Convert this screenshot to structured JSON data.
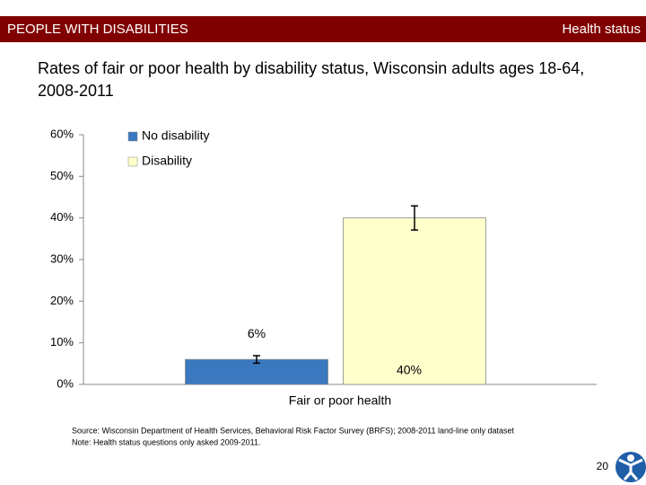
{
  "header": {
    "left": "PEOPLE WITH DISABILITIES",
    "right": "Health status"
  },
  "chart_data": {
    "type": "bar",
    "title": "Rates of fair or poor health by disability status, Wisconsin adults ages 18-64, 2008-2011",
    "categories": [
      "Fair or poor health"
    ],
    "series": [
      {
        "name": "No disability",
        "color": "#3a78c0",
        "values": [
          6
        ],
        "errors": [
          0.9
        ],
        "value_labels": [
          "6%"
        ]
      },
      {
        "name": "Disability",
        "color": "#ffffcc",
        "values": [
          40
        ],
        "errors": [
          2.9
        ],
        "value_labels": [
          "40%"
        ]
      }
    ],
    "ylim": [
      0,
      60
    ],
    "yticks": [
      {
        "value": 0,
        "label": "0%"
      },
      {
        "value": 10,
        "label": "10%"
      },
      {
        "value": 20,
        "label": "20%"
      },
      {
        "value": 30,
        "label": "30%"
      },
      {
        "value": 40,
        "label": "40%"
      },
      {
        "value": 50,
        "label": "50%"
      },
      {
        "value": 60,
        "label": "60%"
      }
    ],
    "grid": false,
    "legend": "top-left"
  },
  "footer": {
    "source": "Source: Wisconsin Department of Health Services, Behavioral Risk Factor Survey (BRFS); 2008-2011 land-line only dataset",
    "note": "Note: Health status questions only asked 2009-2011.",
    "page": "20"
  }
}
